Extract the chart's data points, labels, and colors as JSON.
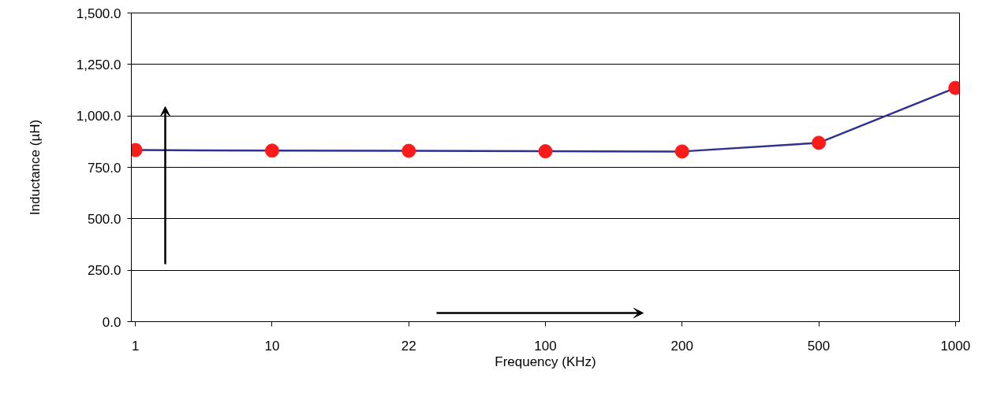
{
  "chart_data": {
    "type": "line",
    "xlabel": "Frequency (KHz)",
    "ylabel": "Inductance (µH)",
    "categories": [
      "1",
      "10",
      "22",
      "100",
      "200",
      "500",
      "1000"
    ],
    "series": [
      {
        "color": "#2e3192",
        "colors": [
          "#ff1a1a",
          "#ff1a1a",
          "#ff1a1a",
          "#ff1a1a",
          "#ff1a1a",
          "#ff1a1a",
          "#ff1a1a"
        ],
        "values": [
          834,
          831,
          830,
          828,
          827,
          869,
          1136
        ]
      }
    ],
    "marker": "circle",
    "line_style": "solid",
    "ylim": [
      0,
      1500
    ],
    "yticks": [
      {
        "value": 0,
        "label": "0.0"
      },
      {
        "value": 250,
        "label": "250.0"
      },
      {
        "value": 500,
        "label": "500.0"
      },
      {
        "value": 750,
        "label": "750.0"
      },
      {
        "value": 1000,
        "label": "1,000.0"
      },
      {
        "value": 1250,
        "label": "1,250.0"
      },
      {
        "value": 1500,
        "label": "1,500.0"
      }
    ],
    "grid": "y"
  }
}
